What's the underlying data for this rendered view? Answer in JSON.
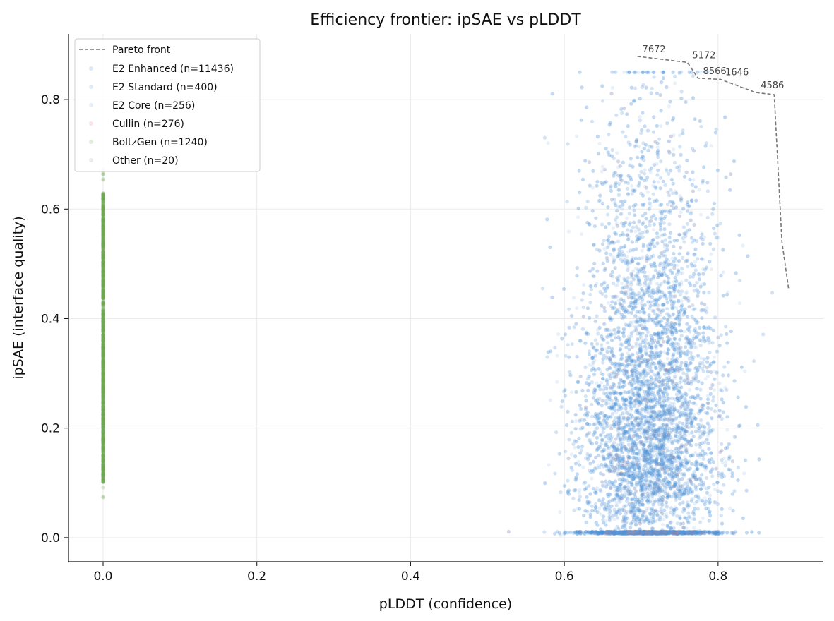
{
  "chart_data": {
    "type": "scatter",
    "title": "Efficiency frontier: ipSAE vs pLDDT",
    "xlabel": "pLDDT (confidence)",
    "ylabel": "ipSAE (interface quality)",
    "xlim": [
      -0.045,
      0.937
    ],
    "ylim": [
      -0.044,
      0.92
    ],
    "xticks": [
      "0.0",
      "0.2",
      "0.4",
      "0.6",
      "0.8"
    ],
    "xtick_values": [
      0,
      0.2,
      0.4,
      0.6,
      0.8
    ],
    "yticks": [
      "0.0",
      "0.2",
      "0.4",
      "0.6",
      "0.8"
    ],
    "ytick_values": [
      0,
      0.2,
      0.4,
      0.6,
      0.8
    ],
    "grid": true,
    "legend_position": "top-left",
    "series": [
      {
        "name": "E2 Enhanced (n=11436)",
        "count": 11436,
        "color": "#4a8fdc"
      },
      {
        "name": "E2 Standard (n=400)",
        "count": 400,
        "color": "#5b9be0"
      },
      {
        "name": "E2 Core (n=256)",
        "count": 256,
        "color": "#7aaee6"
      },
      {
        "name": "Cullin (n=276)",
        "count": 276,
        "color": "#e07b7b"
      },
      {
        "name": "BoltzGen (n=1240)",
        "count": 1240,
        "color": "#6aa84f"
      },
      {
        "name": "Other (n=20)",
        "count": 20,
        "color": "#999999"
      }
    ],
    "pareto_front": {
      "name": "Pareto front",
      "color": "#777777",
      "points": [
        {
          "x": 0.695,
          "y": 0.879,
          "label": "7672"
        },
        {
          "x": 0.76,
          "y": 0.868,
          "label": "5172"
        },
        {
          "x": 0.774,
          "y": 0.839,
          "label": "8566"
        },
        {
          "x": 0.803,
          "y": 0.837,
          "label": "1646"
        },
        {
          "x": 0.849,
          "y": 0.813,
          "label": "4586"
        },
        {
          "x": 0.873,
          "y": 0.809,
          "label": ""
        },
        {
          "x": 0.883,
          "y": 0.541,
          "label": ""
        },
        {
          "x": 0.892,
          "y": 0.452,
          "label": ""
        }
      ]
    }
  }
}
